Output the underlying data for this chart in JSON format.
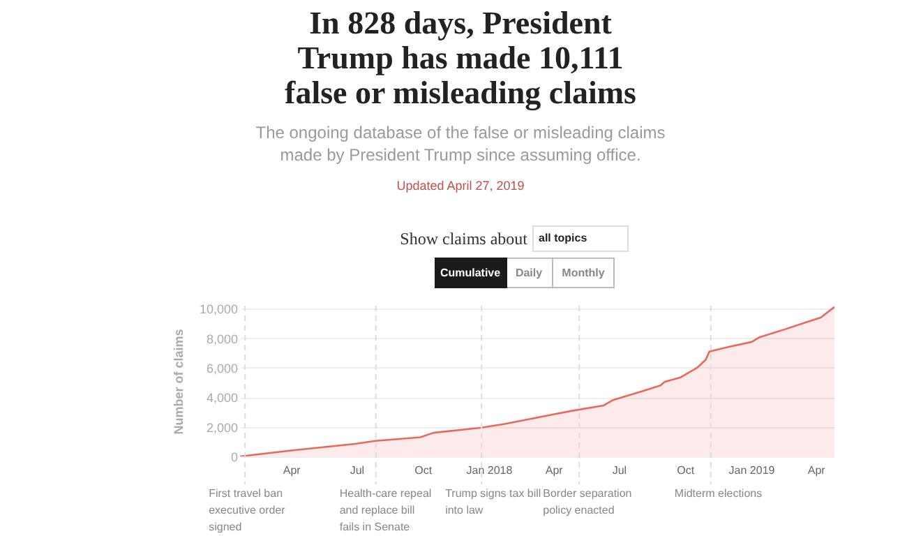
{
  "chart_data": {
    "type": "area",
    "title": "In 828 days, President Trump has made 10,111 false or misleading claims",
    "subtitle": "The ongoing database of the false or misleading claims made by President Trump since assuming office.",
    "ylabel": "Number of claims",
    "annotations": [
      "Updated April 27, 2019",
      "Show claims about",
      "all topics",
      "Cumulative",
      "Daily",
      "Monthly"
    ],
    "x": [
      "2017-01-20",
      "2017-04-01",
      "2017-06-29",
      "2017-07-27",
      "2017-09-28",
      "2017-10-16",
      "2017-12-22",
      "2018-01-23",
      "2018-02-24",
      "2018-03-27",
      "2018-04-28",
      "2018-06-10",
      "2018-06-22",
      "2018-08-02",
      "2018-08-28",
      "2018-09-03",
      "2018-09-25",
      "2018-10-18",
      "2018-10-30",
      "2018-11-04",
      "2018-11-30",
      "2019-01-02",
      "2019-01-12",
      "2019-02-17",
      "2019-03-20",
      "2019-04-08",
      "2019-04-27"
    ],
    "series": [
      {
        "color": "#e9685e",
        "values": [
          0,
          400,
          850,
          1050,
          1300,
          1600,
          1950,
          2200,
          2500,
          2800,
          3100,
          3450,
          3800,
          4400,
          4800,
          5050,
          5350,
          6000,
          6550,
          7100,
          7400,
          7750,
          8050,
          8600,
          9100,
          9400,
          10111
        ]
      }
    ],
    "xlim": [
      "2017-01-20",
      "2019-04-27"
    ],
    "xticks": [
      {
        "value": "2017-04-01",
        "label": "Apr"
      },
      {
        "value": "2017-07-01",
        "label": "Jul"
      },
      {
        "value": "2017-10-01",
        "label": "Oct"
      },
      {
        "value": "2018-01-01",
        "label": "Jan 2018"
      },
      {
        "value": "2018-04-01",
        "label": "Apr"
      },
      {
        "value": "2018-07-01",
        "label": "Jul"
      },
      {
        "value": "2018-10-01",
        "label": "Oct"
      },
      {
        "value": "2019-01-01",
        "label": "Jan 2019"
      },
      {
        "value": "2019-04-01",
        "label": "Apr"
      }
    ],
    "ylim": [
      0,
      10200
    ],
    "yticks": [
      0,
      {
        "value": 2000,
        "label": "2,000"
      },
      {
        "value": 4000,
        "label": "4,000"
      },
      {
        "value": 6000,
        "label": "6,000"
      },
      {
        "value": 8000,
        "label": "8,000"
      },
      {
        "value": 10000,
        "label": "10,000"
      }
    ],
    "grid": "y",
    "ref_lines": [
      {
        "axis": "x",
        "value": "2017-01-27",
        "label": "First travel ban executive order signed",
        "line_style": "dashed",
        "color": "#dddddd"
      },
      {
        "axis": "x",
        "value": "2017-07-28",
        "label": "Health-care repeal and replace bill fails in Senate",
        "line_style": "dashed",
        "color": "#dddddd"
      },
      {
        "axis": "x",
        "value": "2017-12-22",
        "label": "Trump signs tax bill into law",
        "line_style": "dashed",
        "color": "#dddddd"
      },
      {
        "axis": "x",
        "value": "2018-05-07",
        "label": "Border separation policy enacted",
        "line_style": "dashed",
        "color": "#dddddd"
      },
      {
        "axis": "x",
        "value": "2018-11-06",
        "label": "Midterm elections",
        "line_style": "dashed",
        "color": "#dddddd"
      }
    ]
  }
}
